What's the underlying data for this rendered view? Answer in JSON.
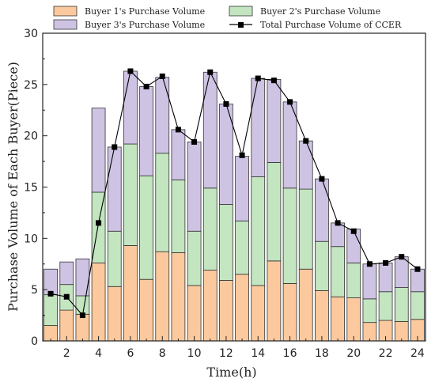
{
  "chart_data": {
    "type": "bar",
    "stacked": true,
    "xlabel": "Time(h)",
    "ylabel": "Purchase Volume of Each Buyer(Piece)",
    "x": [
      1,
      2,
      3,
      4,
      5,
      6,
      7,
      8,
      9,
      10,
      11,
      12,
      13,
      14,
      15,
      16,
      17,
      18,
      19,
      20,
      21,
      22,
      23,
      24
    ],
    "x_ticks": [
      2,
      4,
      6,
      8,
      10,
      12,
      14,
      16,
      18,
      20,
      22,
      24
    ],
    "ylim": [
      0,
      30
    ],
    "y_ticks": [
      0,
      5,
      10,
      15,
      20,
      25,
      30
    ],
    "legend_position": "top",
    "grid": false,
    "series": [
      {
        "name": "Buyer 1's Purchase Volume",
        "kind": "bar",
        "color": "#FBC99D",
        "values": [
          1.5,
          3.0,
          2.6,
          7.6,
          5.3,
          9.3,
          6.0,
          8.7,
          8.6,
          5.4,
          6.9,
          5.9,
          6.5,
          5.4,
          7.8,
          5.6,
          7.0,
          4.9,
          4.3,
          4.2,
          1.8,
          2.0,
          1.9,
          2.1
        ]
      },
      {
        "name": "Buyer 2's Purchase Volume",
        "kind": "bar",
        "color": "#C3E5C0",
        "values": [
          3.0,
          2.5,
          1.8,
          6.9,
          5.4,
          9.9,
          10.1,
          9.6,
          7.1,
          5.3,
          8.0,
          7.4,
          5.2,
          10.6,
          9.6,
          9.3,
          7.8,
          4.8,
          4.9,
          3.4,
          2.3,
          2.8,
          3.3,
          2.7
        ]
      },
      {
        "name": "Buyer 3's Purchase Volume",
        "kind": "bar",
        "color": "#CEC3E3",
        "values": [
          2.5,
          2.2,
          3.6,
          8.2,
          8.2,
          7.1,
          8.7,
          7.4,
          4.9,
          8.7,
          11.3,
          9.8,
          6.3,
          9.6,
          8.1,
          8.4,
          4.7,
          6.1,
          2.3,
          3.3,
          3.4,
          2.8,
          3.0,
          2.2
        ]
      },
      {
        "name": "Total Purchase Volume of CCER",
        "kind": "line",
        "color": "#000000",
        "values": [
          4.6,
          4.3,
          2.5,
          11.5,
          18.9,
          26.3,
          24.8,
          25.8,
          20.6,
          19.4,
          26.2,
          23.1,
          18.1,
          25.6,
          25.4,
          23.3,
          19.5,
          15.8,
          11.5,
          10.7,
          7.5,
          7.6,
          8.2,
          7.0
        ]
      }
    ]
  }
}
